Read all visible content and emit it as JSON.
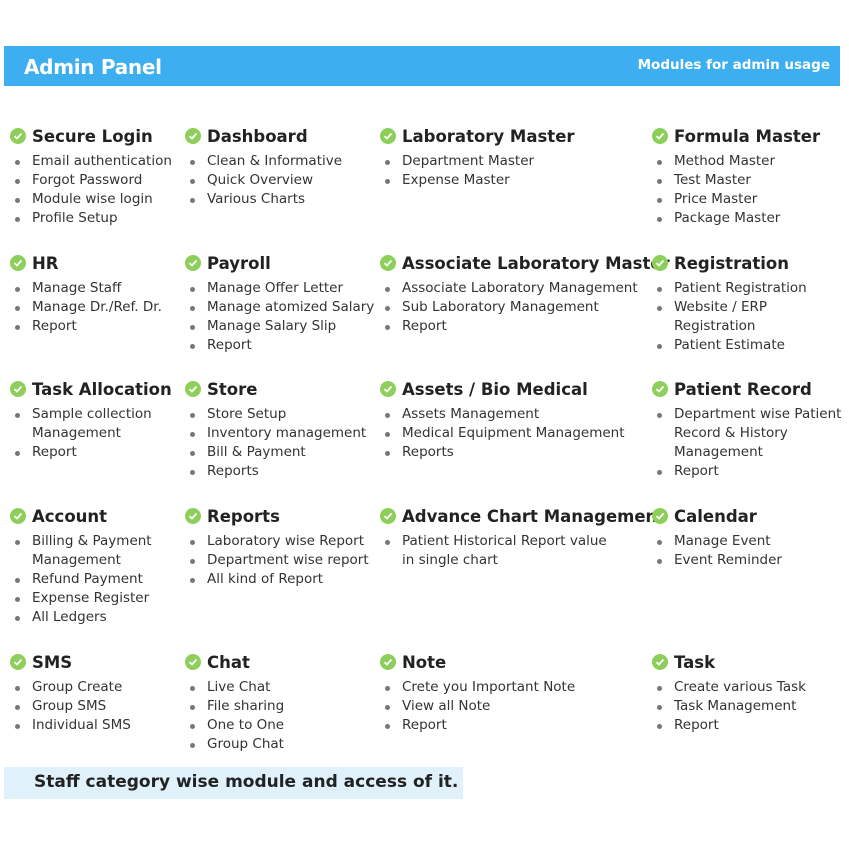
{
  "header": {
    "title": "Admin Panel",
    "subtitle": "Modules for admin usage",
    "color": "#3daff0"
  },
  "modules": [
    {
      "title": "Secure Login",
      "items": [
        "Email authentication",
        "Forgot Password",
        "Module wise login",
        "Profile Setup"
      ]
    },
    {
      "title": "Dashboard",
      "items": [
        "Clean & Informative",
        "Quick Overview",
        "Various Charts"
      ]
    },
    {
      "title": "Laboratory Master",
      "items": [
        "Department Master",
        "Expense Master"
      ]
    },
    {
      "title": "Formula Master",
      "items": [
        "Method Master",
        "Test Master",
        "Price Master",
        "Package Master"
      ]
    },
    {
      "title": "HR",
      "items": [
        "Manage Staff",
        "Manage Dr./Ref. Dr.",
        "Report"
      ]
    },
    {
      "title": "Payroll",
      "items": [
        "Manage Offer Letter",
        "Manage atomized Salary",
        "Manage Salary Slip",
        "Report"
      ]
    },
    {
      "title": "Associate Laboratory Master",
      "items": [
        "Associate Laboratory Management",
        "Sub Laboratory Management",
        "Report"
      ]
    },
    {
      "title": "Registration",
      "items": [
        "Patient Registration",
        "Website / ERP Registration",
        "Patient Estimate"
      ]
    },
    {
      "title": "Task Allocation",
      "items": [
        "Sample collection\nManagement",
        "Report"
      ]
    },
    {
      "title": "Store",
      "items": [
        "Store Setup",
        "Inventory management",
        "Bill & Payment",
        "Reports"
      ]
    },
    {
      "title": "Assets / Bio Medical",
      "items": [
        "Assets Management",
        "Medical Equipment Management",
        "Reports"
      ]
    },
    {
      "title": "Patient Record",
      "items": [
        "Department wise Patient\nRecord & History\nManagement",
        "Report"
      ]
    },
    {
      "title": "Account",
      "items": [
        "Billing & Payment\nManagement",
        "Refund Payment",
        "Expense Register",
        "All Ledgers"
      ]
    },
    {
      "title": "Reports",
      "items": [
        "Laboratory wise Report",
        "Department wise report",
        "All kind of Report"
      ]
    },
    {
      "title": "Advance Chart Management",
      "items": [
        "Patient Historical Report value\nin single chart"
      ]
    },
    {
      "title": "Calendar",
      "items": [
        "Manage Event",
        "Event Reminder"
      ]
    },
    {
      "title": "SMS",
      "items": [
        "Group Create",
        "Group SMS",
        "Individual SMS"
      ]
    },
    {
      "title": "Chat",
      "items": [
        "Live Chat",
        "File sharing",
        "One to One",
        "Group Chat"
      ]
    },
    {
      "title": "Note",
      "items": [
        "Crete you Important Note",
        "View all Note",
        "Report"
      ]
    },
    {
      "title": "Task",
      "items": [
        "Create various Task",
        "Task Management",
        "Report"
      ]
    }
  ],
  "footer": "Staff category wise module and access of it."
}
